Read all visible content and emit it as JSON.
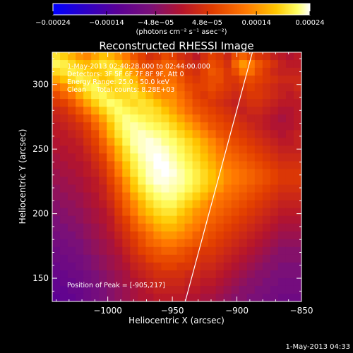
{
  "chart_data": {
    "type": "heatmap",
    "title": "Reconstructed RHESSI Image",
    "xlabel": "Heliocentric X (arcsec)",
    "ylabel": "Heliocentric Y (arcsec)",
    "xlim": [
      -1043,
      -850
    ],
    "ylim": [
      132,
      325
    ],
    "xticks": [
      -1000,
      -950,
      -900,
      -850
    ],
    "xtick_labels": [
      "−1000",
      "−950",
      "−900",
      "−850"
    ],
    "yticks": [
      150,
      200,
      250,
      300
    ],
    "ytick_labels": [
      "150",
      "200",
      "250",
      "300"
    ],
    "colorbar": {
      "ticks": [
        -0.00024,
        -0.00014,
        -4.8e-05,
        4.8e-05,
        0.00014,
        0.00024
      ],
      "tick_labels": [
        "−0.00024",
        "−0.00014",
        "−4.8e−05",
        "4.8e−05",
        "0.00014",
        "0.00024"
      ],
      "unit_label": "(photons cm⁻² s⁻¹ asec⁻²)",
      "range": [
        -0.00024,
        0.00024
      ]
    },
    "annotations": [
      "1-May-2013 02:40:28.000 to 02:44:00.000",
      "Detectors: 3F 5F 6F 7F 8F 9F, Att 0",
      "Energy Range: 25.0 - 50.0 keV",
      "Clean     Total counts: 8.28E+03"
    ],
    "peak_label": "Position of Peak = [-905,217]",
    "peak": [
      -905,
      217
    ],
    "limb_line": [
      [
        -940,
        132
      ],
      [
        -888,
        325
      ]
    ],
    "grid": false,
    "grid_size": [
      32,
      32
    ],
    "values": [
      [
        0.00016,
        0.00014,
        0.00012,
        0.0001,
        9e-05,
        0.00011,
        0.00013,
        0.00012,
        0.0001,
        8e-05,
        5e-05,
        3e-05,
        1e-05,
        2e-05,
        4e-05,
        3e-05,
        1e-05,
        0,
        -2e-05,
        1e-05,
        3e-05,
        2e-05,
        0,
        4e-05,
        6e-05,
        4e-05,
        2e-05,
        1e-05,
        -1e-05,
        -2e-05,
        -3e-05,
        -2e-05
      ],
      [
        0.00018,
        0.00017,
        0.00015,
        0.00013,
        0.00012,
        0.00014,
        0.00016,
        0.00015,
        0.00013,
        0.0001,
        7e-05,
        4e-05,
        3e-05,
        4e-05,
        6e-05,
        5e-05,
        3e-05,
        1e-05,
        0,
        2e-05,
        4e-05,
        3e-05,
        1e-05,
        6e-05,
        0.0001,
        8e-05,
        5e-05,
        3e-05,
        1e-05,
        -1e-05,
        -2e-05,
        -2e-05
      ],
      [
        0.00015,
        0.00016,
        0.00017,
        0.00016,
        0.00014,
        0.00013,
        0.00014,
        0.00016,
        0.00017,
        0.00013,
        0.0001,
        7e-05,
        5e-05,
        5e-05,
        7e-05,
        6e-05,
        4e-05,
        2e-05,
        1e-05,
        3e-05,
        5e-05,
        4e-05,
        2e-05,
        4e-05,
        8e-05,
        7e-05,
        4e-05,
        2e-05,
        0,
        -1e-05,
        -1e-05,
        -1e-05
      ],
      [
        0.00011,
        0.00013,
        0.00015,
        0.00017,
        0.00016,
        0.00015,
        0.00013,
        0.00014,
        0.00016,
        0.00015,
        0.00012,
        9e-05,
        7e-05,
        6e-05,
        7e-05,
        7e-05,
        5e-05,
        3e-05,
        2e-05,
        3e-05,
        4e-05,
        4e-05,
        2e-05,
        2e-05,
        4e-05,
        4e-05,
        3e-05,
        2e-05,
        1e-05,
        0,
        0,
        0
      ],
      [
        7e-05,
        9e-05,
        0.00012,
        0.00014,
        0.00017,
        0.00018,
        0.00016,
        0.00014,
        0.00015,
        0.00016,
        0.00014,
        0.00011,
        9e-05,
        8e-05,
        9e-05,
        8e-05,
        6e-05,
        4e-05,
        3e-05,
        3e-05,
        4e-05,
        3e-05,
        2e-05,
        1e-05,
        2e-05,
        3e-05,
        2e-05,
        1e-05,
        0,
        -1e-05,
        -1e-05,
        0
      ],
      [
        4e-05,
        6e-05,
        8e-05,
        0.00011,
        0.00014,
        0.00017,
        0.00018,
        0.00016,
        0.00015,
        0.00015,
        0.00016,
        0.00014,
        0.00012,
        0.0001,
        9e-05,
        9e-05,
        7e-05,
        5e-05,
        3e-05,
        2e-05,
        3e-05,
        2e-05,
        1e-05,
        0,
        1e-05,
        2e-05,
        2e-05,
        1e-05,
        0,
        -1e-05,
        -2e-05,
        -1e-05
      ],
      [
        2e-05,
        3e-05,
        5e-05,
        8e-05,
        0.00011,
        0.00014,
        0.00017,
        0.00019,
        0.00018,
        0.00016,
        0.00015,
        0.00016,
        0.00015,
        0.00013,
        0.00011,
        0.0001,
        8e-05,
        6e-05,
        4e-05,
        3e-05,
        2e-05,
        1e-05,
        0,
        -1e-05,
        0,
        1e-05,
        1e-05,
        0,
        -1e-05,
        -2e-05,
        -2e-05,
        -2e-05
      ],
      [
        0,
        1e-05,
        3e-05,
        5e-05,
        8e-05,
        0.00011,
        0.00014,
        0.00017,
        0.00019,
        0.00018,
        0.00017,
        0.00016,
        0.00016,
        0.00015,
        0.00013,
        0.00011,
        9e-05,
        7e-05,
        5e-05,
        4e-05,
        3e-05,
        2e-05,
        1e-05,
        0,
        -1e-05,
        0,
        0,
        -1e-05,
        -2e-05,
        -3e-05,
        -3e-05,
        -2e-05
      ],
      [
        -1e-05,
        0,
        1e-05,
        3e-05,
        5e-05,
        8e-05,
        0.00011,
        0.00015,
        0.00018,
        0.0002,
        0.00019,
        0.00018,
        0.00017,
        0.00016,
        0.00015,
        0.00013,
        0.00011,
        9e-05,
        7e-05,
        5e-05,
        4e-05,
        3e-05,
        2e-05,
        1e-05,
        0,
        -1e-05,
        -1e-05,
        -2e-05,
        -3e-05,
        -4e-05,
        -3e-05,
        -2e-05
      ],
      [
        -2e-05,
        -1e-05,
        0,
        1e-05,
        3e-05,
        6e-05,
        9e-05,
        0.00013,
        0.00017,
        0.0002,
        0.00021,
        0.0002,
        0.00019,
        0.00018,
        0.00017,
        0.00015,
        0.00013,
        0.00011,
        9e-05,
        7e-05,
        5e-05,
        4e-05,
        3e-05,
        2e-05,
        1e-05,
        0,
        -1e-05,
        -2e-05,
        -3e-05,
        -3e-05,
        -3e-05,
        -2e-05
      ],
      [
        -2e-05,
        -2e-05,
        -1e-05,
        0,
        2e-05,
        4e-05,
        8e-05,
        0.00012,
        0.00016,
        0.00019,
        0.00021,
        0.00022,
        0.00021,
        0.0002,
        0.00019,
        0.00017,
        0.00015,
        0.00013,
        0.00011,
        9e-05,
        7e-05,
        5e-05,
        4e-05,
        3e-05,
        2e-05,
        1e-05,
        0,
        -1e-05,
        -2e-05,
        -3e-05,
        -2e-05,
        -1e-05
      ],
      [
        -3e-05,
        -2e-05,
        -2e-05,
        -1e-05,
        1e-05,
        3e-05,
        6e-05,
        0.0001,
        0.00014,
        0.00018,
        0.00021,
        0.00022,
        0.00023,
        0.00022,
        0.0002,
        0.00019,
        0.00017,
        0.00015,
        0.00013,
        0.00011,
        9e-05,
        7e-05,
        5e-05,
        4e-05,
        3e-05,
        2e-05,
        1e-05,
        0,
        -1e-05,
        -2e-05,
        -2e-05,
        -1e-05
      ],
      [
        -3e-05,
        -3e-05,
        -2e-05,
        -2e-05,
        0,
        2e-05,
        5e-05,
        8e-05,
        0.00012,
        0.00016,
        0.0002,
        0.00022,
        0.00023,
        0.00023,
        0.00022,
        0.0002,
        0.00018,
        0.00016,
        0.00014,
        0.00012,
        0.0001,
        8e-05,
        6e-05,
        5e-05,
        4e-05,
        3e-05,
        2e-05,
        1e-05,
        0,
        -1e-05,
        -1e-05,
        -1e-05
      ],
      [
        -4e-05,
        -3e-05,
        -3e-05,
        -2e-05,
        -1e-05,
        1e-05,
        3e-05,
        7e-05,
        0.00011,
        0.00015,
        0.00018,
        0.00021,
        0.00023,
        0.00024,
        0.00023,
        0.00021,
        0.00019,
        0.00017,
        0.00015,
        0.00013,
        0.00011,
        9e-05,
        7e-05,
        6e-05,
        5e-05,
        4e-05,
        3e-05,
        2e-05,
        1e-05,
        0,
        0,
        0
      ],
      [
        -4e-05,
        -4e-05,
        -3e-05,
        -3e-05,
        -2e-05,
        0,
        2e-05,
        5e-05,
        9e-05,
        0.00013,
        0.00017,
        0.0002,
        0.00022,
        0.00024,
        0.00024,
        0.00022,
        0.0002,
        0.00018,
        0.00016,
        0.00014,
        0.00012,
        0.0001,
        8e-05,
        7e-05,
        6e-05,
        5e-05,
        4e-05,
        3e-05,
        2e-05,
        1e-05,
        1e-05,
        1e-05
      ],
      [
        -5e-05,
        -4e-05,
        -4e-05,
        -3e-05,
        -2e-05,
        -1e-05,
        1e-05,
        4e-05,
        8e-05,
        0.00012,
        0.00016,
        0.00019,
        0.00022,
        0.00023,
        0.00024,
        0.00023,
        0.00021,
        0.00019,
        0.00017,
        0.00015,
        0.00013,
        0.00011,
        9e-05,
        8e-05,
        7e-05,
        6e-05,
        5e-05,
        4e-05,
        3e-05,
        2e-05,
        2e-05,
        2e-05
      ],
      [
        -5e-05,
        -5e-05,
        -4e-05,
        -4e-05,
        -3e-05,
        -2e-05,
        0,
        3e-05,
        6e-05,
        0.0001,
        0.00014,
        0.00018,
        0.00021,
        0.00023,
        0.00023,
        0.00022,
        0.00021,
        0.00019,
        0.00017,
        0.00015,
        0.00013,
        0.00011,
        9e-05,
        8e-05,
        7e-05,
        6e-05,
        5e-05,
        4e-05,
        3e-05,
        2e-05,
        2e-05,
        2e-05
      ],
      [
        -6e-05,
        -5e-05,
        -5e-05,
        -4e-05,
        -3e-05,
        -2e-05,
        -1e-05,
        2e-05,
        5e-05,
        9e-05,
        0.00013,
        0.00016,
        0.00019,
        0.00021,
        0.00022,
        0.00021,
        0.0002,
        0.00018,
        0.00016,
        0.00014,
        0.00012,
        0.0001,
        8e-05,
        7e-05,
        6e-05,
        5e-05,
        4e-05,
        3e-05,
        2e-05,
        1e-05,
        1e-05,
        1e-05
      ],
      [
        -6e-05,
        -6e-05,
        -5e-05,
        -5e-05,
        -4e-05,
        -3e-05,
        -1e-05,
        1e-05,
        4e-05,
        7e-05,
        0.00011,
        0.00014,
        0.00017,
        0.00019,
        0.0002,
        0.0002,
        0.00018,
        0.00016,
        0.00014,
        0.00012,
        0.0001,
        8e-05,
        7e-05,
        6e-05,
        5e-05,
        4e-05,
        3e-05,
        2e-05,
        1e-05,
        0,
        0,
        0
      ],
      [
        -7e-05,
        -6e-05,
        -6e-05,
        -5e-05,
        -4e-05,
        -3e-05,
        -2e-05,
        0,
        3e-05,
        6e-05,
        9e-05,
        0.00012,
        0.00015,
        0.00017,
        0.00018,
        0.00018,
        0.00016,
        0.00014,
        0.00012,
        0.0001,
        8e-05,
        7e-05,
        6e-05,
        5e-05,
        4e-05,
        3e-05,
        2e-05,
        1e-05,
        0,
        -1e-05,
        -1e-05,
        -1e-05
      ],
      [
        -7e-05,
        -7e-05,
        -6e-05,
        -6e-05,
        -5e-05,
        -4e-05,
        -3e-05,
        -1e-05,
        2e-05,
        5e-05,
        8e-05,
        0.00011,
        0.00013,
        0.00015,
        0.00016,
        0.00016,
        0.00014,
        0.00012,
        0.0001,
        9e-05,
        7e-05,
        6e-05,
        5e-05,
        4e-05,
        3e-05,
        2e-05,
        1e-05,
        0,
        -1e-05,
        -2e-05,
        -2e-05,
        -2e-05
      ],
      [
        -8e-05,
        -7e-05,
        -7e-05,
        -6e-05,
        -5e-05,
        -4e-05,
        -3e-05,
        -2e-05,
        1e-05,
        3e-05,
        6e-05,
        9e-05,
        0.00011,
        0.00013,
        0.00014,
        0.00014,
        0.00012,
        0.00011,
        9e-05,
        8e-05,
        6e-05,
        5e-05,
        4e-05,
        3e-05,
        2e-05,
        1e-05,
        0,
        -1e-05,
        -2e-05,
        -3e-05,
        -3e-05,
        -3e-05
      ],
      [
        -8e-05,
        -8e-05,
        -7e-05,
        -7e-05,
        -6e-05,
        -5e-05,
        -4e-05,
        -2e-05,
        0,
        2e-05,
        5e-05,
        7e-05,
        9e-05,
        0.00011,
        0.00012,
        0.00012,
        0.00011,
        9e-05,
        8e-05,
        6e-05,
        5e-05,
        4e-05,
        3e-05,
        2e-05,
        1e-05,
        0,
        -1e-05,
        -2e-05,
        -3e-05,
        -4e-05,
        -4e-05,
        -4e-05
      ],
      [
        -9e-05,
        -8e-05,
        -8e-05,
        -7e-05,
        -6e-05,
        -5e-05,
        -4e-05,
        -3e-05,
        -1e-05,
        1e-05,
        3e-05,
        5e-05,
        7e-05,
        9e-05,
        0.0001,
        0.0001,
        9e-05,
        8e-05,
        6e-05,
        5e-05,
        4e-05,
        3e-05,
        2e-05,
        1e-05,
        0,
        -1e-05,
        -2e-05,
        -3e-05,
        -4e-05,
        -5e-05,
        -5e-05,
        -5e-05
      ],
      [
        -9e-05,
        -9e-05,
        -8e-05,
        -8e-05,
        -7e-05,
        -6e-05,
        -5e-05,
        -4e-05,
        -2e-05,
        0,
        2e-05,
        4e-05,
        6e-05,
        7e-05,
        8e-05,
        8e-05,
        7e-05,
        6e-05,
        5e-05,
        4e-05,
        3e-05,
        2e-05,
        1e-05,
        0,
        -1e-05,
        -2e-05,
        -3e-05,
        -4e-05,
        -5e-05,
        -6e-05,
        -6e-05,
        -6e-05
      ],
      [
        -0.0001,
        -9e-05,
        -9e-05,
        -8e-05,
        -7e-05,
        -6e-05,
        -5e-05,
        -4e-05,
        -3e-05,
        -1e-05,
        1e-05,
        3e-05,
        4e-05,
        5e-05,
        6e-05,
        6e-05,
        5e-05,
        4e-05,
        3e-05,
        2e-05,
        2e-05,
        1e-05,
        0,
        -1e-05,
        -2e-05,
        -3e-05,
        -4e-05,
        -5e-05,
        -6e-05,
        -7e-05,
        -7e-05,
        -7e-05
      ],
      [
        -0.0001,
        -0.0001,
        -9e-05,
        -9e-05,
        -8e-05,
        -7e-05,
        -6e-05,
        -5e-05,
        -4e-05,
        -2e-05,
        0,
        1e-05,
        3e-05,
        4e-05,
        4e-05,
        4e-05,
        4e-05,
        3e-05,
        2e-05,
        1e-05,
        1e-05,
        0,
        -1e-05,
        -2e-05,
        -3e-05,
        -4e-05,
        -5e-05,
        -6e-05,
        -7e-05,
        -7e-05,
        -7e-05,
        -7e-05
      ],
      [
        -0.00011,
        -0.0001,
        -0.0001,
        -9e-05,
        -8e-05,
        -7e-05,
        -6e-05,
        -5e-05,
        -4e-05,
        -3e-05,
        -1e-05,
        0,
        1e-05,
        2e-05,
        3e-05,
        3e-05,
        2e-05,
        2e-05,
        1e-05,
        0,
        0,
        -1e-05,
        -2e-05,
        -3e-05,
        -4e-05,
        -5e-05,
        -6e-05,
        -7e-05,
        -7e-05,
        -8e-05,
        -8e-05,
        -8e-05
      ],
      [
        -0.00011,
        -0.00011,
        -0.0001,
        -0.0001,
        -9e-05,
        -8e-05,
        -7e-05,
        -6e-05,
        -5e-05,
        -4e-05,
        -2e-05,
        -1e-05,
        0,
        1e-05,
        1e-05,
        1e-05,
        1e-05,
        0,
        0,
        -1e-05,
        -1e-05,
        -2e-05,
        -3e-05,
        -4e-05,
        -5e-05,
        -6e-05,
        -7e-05,
        -7e-05,
        -8e-05,
        -8e-05,
        -8e-05,
        -8e-05
      ],
      [
        -0.00012,
        -0.00011,
        -0.00011,
        -0.0001,
        -9e-05,
        -8e-05,
        -7e-05,
        -6e-05,
        -5e-05,
        -4e-05,
        -3e-05,
        -2e-05,
        -1e-05,
        0,
        0,
        0,
        0,
        -1e-05,
        -1e-05,
        -2e-05,
        -2e-05,
        -3e-05,
        -4e-05,
        -5e-05,
        -6e-05,
        -7e-05,
        -7e-05,
        -8e-05,
        -8e-05,
        -9e-05,
        -9e-05,
        -9e-05
      ],
      [
        -0.00012,
        -0.00012,
        -0.00011,
        -0.00011,
        -0.0001,
        -9e-05,
        -8e-05,
        -7e-05,
        -6e-05,
        -5e-05,
        -4e-05,
        -3e-05,
        -2e-05,
        -1e-05,
        -1e-05,
        -1e-05,
        -1e-05,
        -2e-05,
        -2e-05,
        -3e-05,
        -3e-05,
        -4e-05,
        -5e-05,
        -6e-05,
        -7e-05,
        -7e-05,
        -8e-05,
        -8e-05,
        -9e-05,
        -9e-05,
        -9e-05,
        -9e-05
      ],
      [
        -0.00013,
        -0.00012,
        -0.00012,
        -0.00011,
        -0.0001,
        -9e-05,
        -8e-05,
        -7e-05,
        -6e-05,
        -5e-05,
        -4e-05,
        -3e-05,
        -3e-05,
        -2e-05,
        -2e-05,
        -2e-05,
        -2e-05,
        -3e-05,
        -3e-05,
        -4e-05,
        -4e-05,
        -5e-05,
        -6e-05,
        -7e-05,
        -7e-05,
        -8e-05,
        -8e-05,
        -9e-05,
        -9e-05,
        -0.0001,
        -0.0001,
        -0.0001
      ]
    ]
  },
  "footer": {
    "timestamp": "1-May-2013 04:33"
  },
  "colors": {
    "background": "#000000",
    "axis": "#ffffff",
    "colormap": [
      "#0000ff",
      "#2b00c8",
      "#5a0096",
      "#7a1078",
      "#b4142d",
      "#e13c00",
      "#ff7800",
      "#ffc800",
      "#ffff64",
      "#ffffff"
    ]
  }
}
